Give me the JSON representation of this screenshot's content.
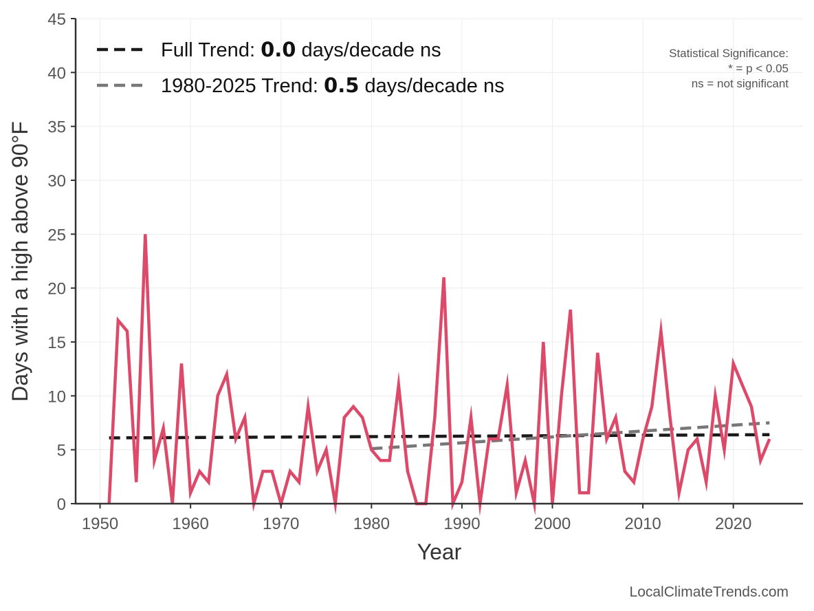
{
  "chart_data": {
    "type": "line",
    "xlabel": "Year",
    "ylabel": "Days with a high above 90°F",
    "xlim": [
      1947.3,
      2027.7
    ],
    "ylim": [
      0,
      45
    ],
    "xticks": [
      1950,
      1960,
      1970,
      1980,
      1990,
      2000,
      2010,
      2020
    ],
    "yticks": [
      0,
      5,
      10,
      15,
      20,
      25,
      30,
      35,
      40,
      45
    ],
    "grid": true,
    "legend_position": "top-left",
    "series": [
      {
        "color": "#dd4968",
        "x": [
          1951,
          1952,
          1953,
          1954,
          1955,
          1956,
          1957,
          1958,
          1959,
          1960,
          1961,
          1962,
          1963,
          1964,
          1965,
          1966,
          1967,
          1968,
          1969,
          1970,
          1971,
          1972,
          1973,
          1974,
          1975,
          1976,
          1977,
          1978,
          1979,
          1980,
          1981,
          1982,
          1983,
          1984,
          1985,
          1986,
          1987,
          1988,
          1989,
          1990,
          1991,
          1992,
          1993,
          1994,
          1995,
          1996,
          1997,
          1998,
          1999,
          2000,
          2001,
          2002,
          2003,
          2004,
          2005,
          2006,
          2007,
          2008,
          2009,
          2010,
          2011,
          2012,
          2013,
          2014,
          2015,
          2016,
          2017,
          2018,
          2019,
          2020,
          2021,
          2022,
          2023,
          2024
        ],
        "y": [
          0,
          17,
          16,
          2,
          25,
          4,
          7,
          0,
          13,
          1,
          3,
          2,
          10,
          12,
          6,
          8,
          0,
          3,
          3,
          0,
          3,
          2,
          9,
          3,
          5,
          0,
          8,
          9,
          8,
          5,
          4,
          4,
          11,
          3,
          0,
          0,
          8,
          21,
          0,
          2,
          8,
          0,
          6,
          6,
          11,
          1,
          4,
          0,
          15,
          0,
          10,
          18,
          1,
          1,
          14,
          6,
          8,
          3,
          2,
          6,
          9,
          16,
          8,
          1,
          5,
          6,
          2,
          10,
          5,
          13,
          11,
          9,
          4,
          6
        ]
      }
    ],
    "trends": [
      {
        "label_prefix": "Full Trend: ",
        "value": "0.0",
        "label_suffix": " days/decade ns",
        "color": "#1a1a1a",
        "x": [
          1951,
          2024
        ],
        "y": [
          6.1,
          6.4
        ]
      },
      {
        "label_prefix": "1980-2025 Trend: ",
        "value": "0.5",
        "label_suffix": " days/decade ns",
        "color": "#777777",
        "x": [
          1980,
          2024
        ],
        "y": [
          5.1,
          7.5
        ]
      }
    ],
    "annotation": {
      "lines": [
        "Statistical Significance:",
        "* = p < 0.05",
        "ns = not significant"
      ]
    },
    "credit": "LocalClimateTrends.com"
  }
}
